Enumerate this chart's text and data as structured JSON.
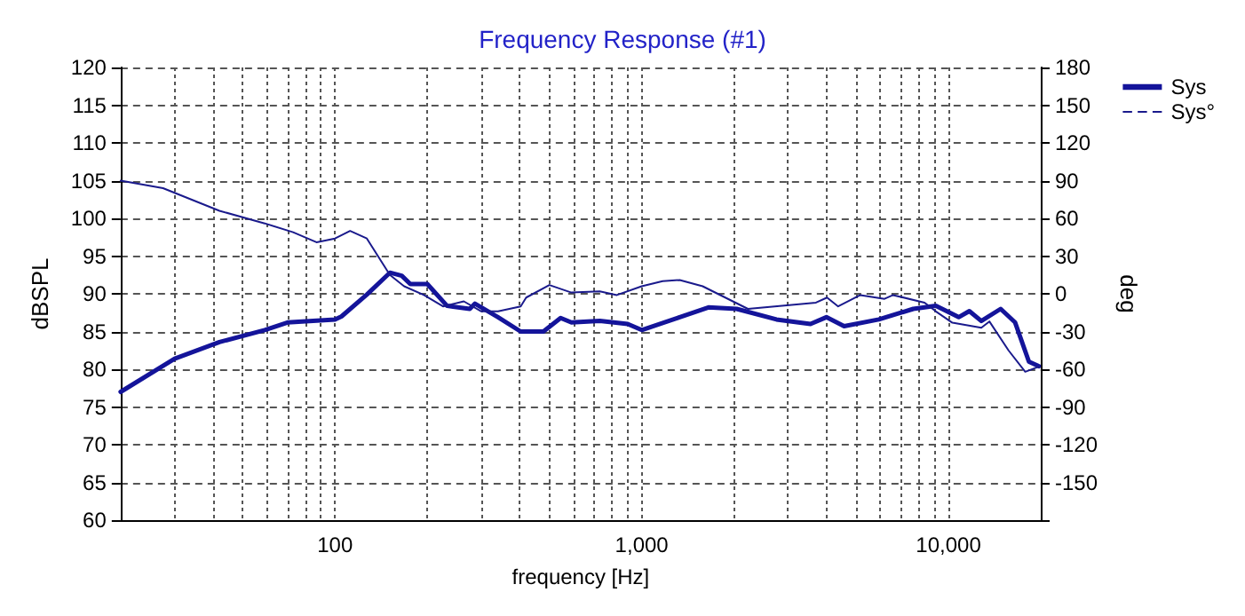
{
  "chart_data": {
    "type": "line",
    "title": "Frequency Response (#1)",
    "xlabel": "frequency [Hz]",
    "ylabel": "dBSPL",
    "y2label": "deg",
    "log": "x",
    "grid": true,
    "legend": "top right",
    "marker": "none",
    "line_style": "solid",
    "xlim": [
      20,
      20000
    ],
    "xticks": [
      {
        "value": 20,
        "label": null
      },
      {
        "value": 30,
        "label": null
      },
      {
        "value": 40,
        "label": null
      },
      {
        "value": 50,
        "label": null
      },
      {
        "value": 60,
        "label": null
      },
      {
        "value": 70,
        "label": null
      },
      {
        "value": 80,
        "label": null
      },
      {
        "value": 90,
        "label": null
      },
      100,
      {
        "value": 200,
        "label": null
      },
      {
        "value": 300,
        "label": null
      },
      {
        "value": 400,
        "label": null
      },
      {
        "value": 500,
        "label": null
      },
      {
        "value": 600,
        "label": null
      },
      {
        "value": 700,
        "label": null
      },
      {
        "value": 800,
        "label": null
      },
      {
        "value": 900,
        "label": null
      },
      {
        "value": 1000,
        "label": "1,000"
      },
      {
        "value": 2000,
        "label": null
      },
      {
        "value": 3000,
        "label": null
      },
      {
        "value": 4000,
        "label": null
      },
      {
        "value": 5000,
        "label": null
      },
      {
        "value": 6000,
        "label": null
      },
      {
        "value": 7000,
        "label": null
      },
      {
        "value": 8000,
        "label": null
      },
      {
        "value": 9000,
        "label": null
      },
      {
        "value": 10000,
        "label": "10,000"
      },
      {
        "value": 20000,
        "label": null
      }
    ],
    "ylim": [
      60,
      120
    ],
    "yticks": [
      60,
      65,
      70,
      75,
      80,
      85,
      90,
      95,
      100,
      105,
      110,
      115,
      120
    ],
    "y2lim": [
      -180,
      180
    ],
    "y2ticks": [
      {
        "value": -180,
        "label": null
      },
      -150,
      -120,
      -90,
      -60,
      -30,
      0,
      30,
      60,
      90,
      120,
      150,
      180
    ],
    "series": [
      {
        "name": "Sys",
        "color": "#14149a",
        "x": [
          20,
          30,
          42,
          59,
          70,
          100,
          105,
          127,
          151,
          165,
          176,
          200,
          232,
          275,
          286,
          340,
          403,
          478,
          544,
          590,
          730,
          900,
          1000,
          1330,
          1650,
          2040,
          2750,
          3550,
          4000,
          4570,
          5930,
          7680,
          9100,
          10800,
          11700,
          12800,
          14800,
          16500,
          18300,
          19700
        ],
        "values": [
          77,
          81.4,
          83.6,
          85.2,
          86.2,
          86.6,
          87,
          89.9,
          92.8,
          92.4,
          91.3,
          91.3,
          88.4,
          88,
          88.7,
          86.9,
          85,
          85,
          86.8,
          86.2,
          86.4,
          86,
          85.2,
          86.9,
          88.2,
          88,
          86.6,
          86,
          86.9,
          85.7,
          86.6,
          88,
          88.4,
          86.9,
          87.7,
          86.4,
          88,
          86.2,
          81,
          80.4
        ]
      },
      {
        "name": "Sys°",
        "color": "#1a1a8c",
        "axis": "y2",
        "x": [
          20,
          27.5,
          42,
          59,
          73,
          87,
          100,
          112,
          127,
          151,
          168,
          195,
          225,
          263,
          300,
          340,
          403,
          420,
          500,
          590,
          730,
          830,
          1000,
          1170,
          1330,
          1580,
          2220,
          3700,
          4020,
          4370,
          5160,
          6190,
          6600,
          8360,
          9100,
          10300,
          12800,
          13600,
          15700,
          17800,
          19700
        ],
        "values": [
          90,
          84,
          66,
          56,
          49,
          41,
          44,
          50,
          44,
          15,
          6,
          -1,
          -10,
          -6,
          -14,
          -14,
          -10,
          -3,
          7,
          1,
          2,
          -1,
          6,
          10,
          11,
          6,
          -12,
          -7,
          -3,
          -10,
          -1,
          -4,
          -1,
          -7,
          -14,
          -23,
          -27,
          -22,
          -45,
          -62,
          -58
        ]
      }
    ]
  }
}
